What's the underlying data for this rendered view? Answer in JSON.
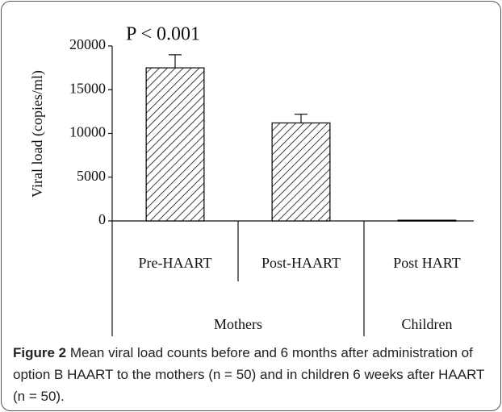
{
  "chart_data": {
    "type": "bar",
    "y_label": "Viral load (copies/ml)",
    "annotation": "P < 0.001",
    "categories": [
      "Pre-HAART",
      "Post-HAART",
      "Post HART"
    ],
    "groups": [
      {
        "name": "Mothers",
        "span": [
          0,
          1
        ]
      },
      {
        "name": "Children",
        "span": [
          2,
          2
        ]
      }
    ],
    "values": [
      17500,
      11200,
      80
    ],
    "errors": [
      1500,
      1000,
      null
    ],
    "color": "#000000",
    "ylim": [
      0,
      20000
    ],
    "yticks": [
      0,
      5000,
      10000,
      15000,
      20000
    ]
  },
  "caption": {
    "label": "Figure 2",
    "text": "Mean viral load counts before and 6 months after administration of option B HAART to the mothers (n = 50) and in children 6 weeks after HAART (n = 50)."
  }
}
